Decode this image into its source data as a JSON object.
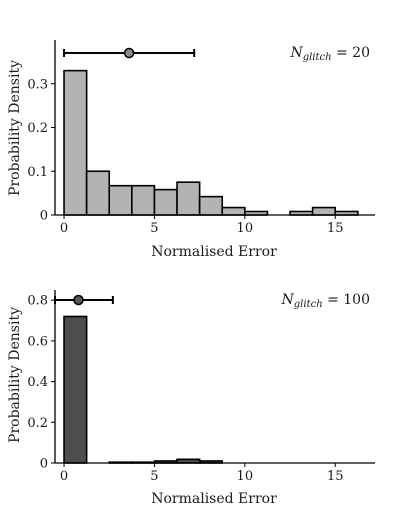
{
  "figure": {
    "panels": [
      {
        "id": "top",
        "annotation_main": "N",
        "annotation_sub": "glitch",
        "annotation_value": " = 20",
        "xlabel": "Normalised Error",
        "ylabel": "Probability Density",
        "bar_color": "#b3b3b3",
        "marker_color": "#8c8c8c"
      },
      {
        "id": "bottom",
        "annotation_main": "N",
        "annotation_sub": "glitch",
        "annotation_value": " = 100",
        "xlabel": "Normalised Error",
        "ylabel": "Probability Density",
        "bar_color": "#4d4d4d",
        "marker_color": "#595959"
      }
    ]
  },
  "chart_data": [
    {
      "type": "bar",
      "title": "",
      "xlabel": "Normalised Error",
      "ylabel": "Probability Density",
      "bin_edges": [
        0,
        1.25,
        2.5,
        3.75,
        5.0,
        6.25,
        7.5,
        8.75,
        10.0,
        11.25,
        12.5,
        13.75,
        15.0,
        16.25
      ],
      "values": [
        0.33,
        0.1,
        0.067,
        0.067,
        0.058,
        0.075,
        0.042,
        0.017,
        0.008,
        0.0,
        0.008,
        0.017,
        0.008
      ],
      "xlim": [
        -0.5,
        17.2
      ],
      "ylim": [
        0,
        0.4
      ],
      "xticks": [
        0,
        5,
        10,
        15
      ],
      "yticks": [
        0,
        0.1,
        0.2,
        0.3
      ],
      "ytick_labels": [
        "0",
        "0.1",
        "0.2",
        "0.3"
      ],
      "summary_marker": {
        "center": 3.6,
        "low": 0.0,
        "high": 7.2
      },
      "grid": false
    },
    {
      "type": "bar",
      "title": "",
      "xlabel": "Normalised Error",
      "ylabel": "Probability Density",
      "bin_edges": [
        0,
        1.25,
        2.5,
        3.75,
        5.0,
        6.25,
        7.5,
        8.75,
        10.0,
        11.25,
        12.5,
        13.75,
        15.0,
        16.25
      ],
      "values": [
        0.72,
        0.0,
        0.004,
        0.004,
        0.01,
        0.018,
        0.01,
        0.0,
        0.0,
        0.0,
        0.0,
        0.0,
        0.0
      ],
      "xlim": [
        -0.5,
        17.2
      ],
      "ylim": [
        0,
        0.85
      ],
      "xticks": [
        0,
        5,
        10,
        15
      ],
      "yticks": [
        0,
        0.2,
        0.4,
        0.6,
        0.8
      ],
      "ytick_labels": [
        "0",
        "0.2",
        "0.4",
        "0.6",
        "0.8"
      ],
      "summary_marker": {
        "center": 0.8,
        "low": -0.5,
        "high": 2.7
      },
      "grid": false
    }
  ]
}
